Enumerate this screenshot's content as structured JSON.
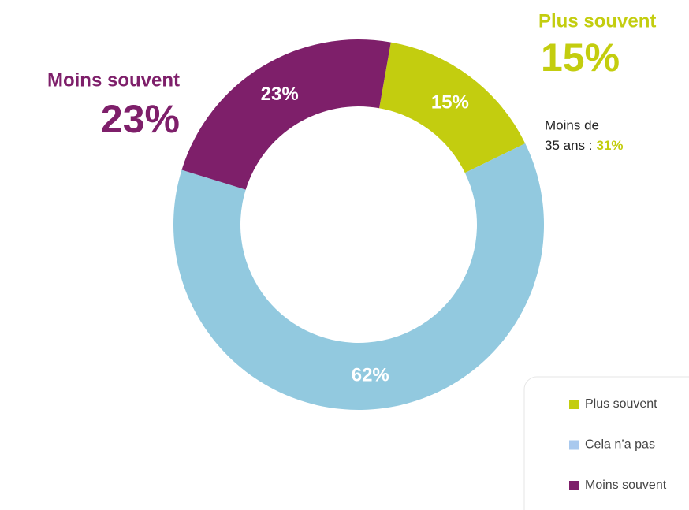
{
  "chart_data": {
    "type": "pie",
    "categories": [
      "Plus souvent",
      "Cela n’a pas",
      "Moins souvent"
    ],
    "values": [
      15,
      62,
      23
    ],
    "value_labels": [
      "15%",
      "62%",
      "23%"
    ],
    "colors": [
      "#c3cd0f",
      "#92c9df",
      "#7e1f6a"
    ],
    "legend_colors": [
      "#c3cd0f",
      "#a9c9ee",
      "#7e1f6a"
    ],
    "donut": true,
    "legend": "lower right",
    "note": {
      "line1": "Moins de",
      "line2": "35 ans :",
      "highlight": "31%"
    }
  }
}
